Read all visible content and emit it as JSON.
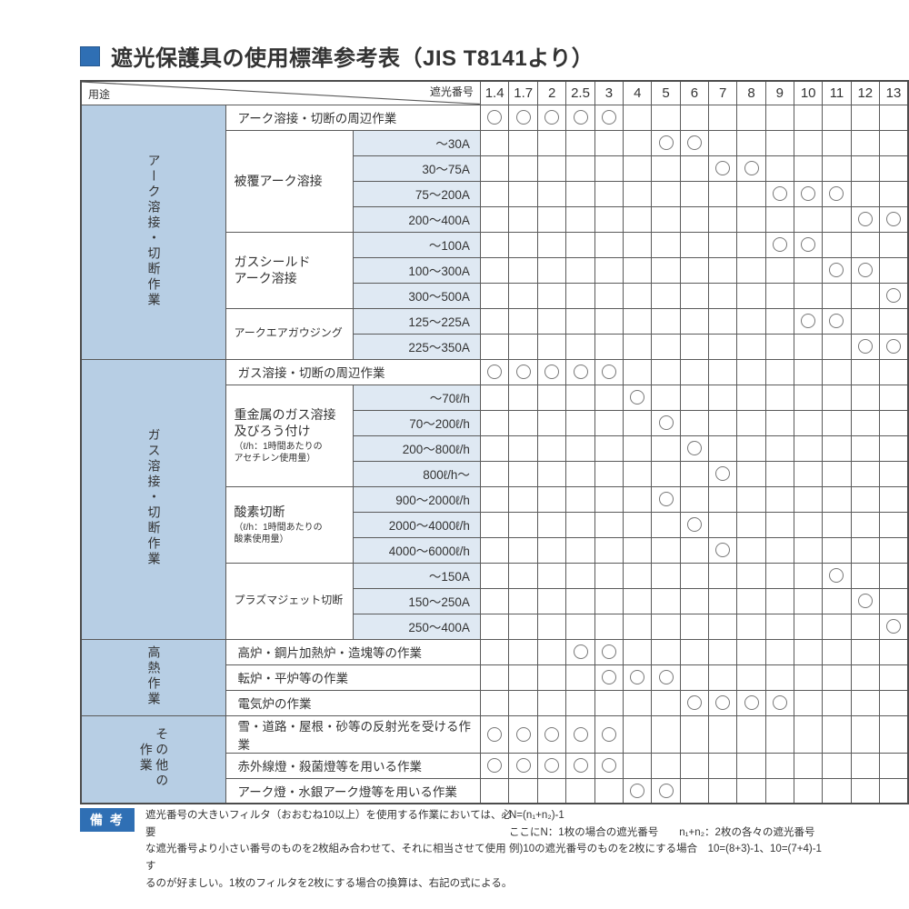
{
  "title": {
    "text": "遮光保護具の使用標準参考表（JIS T8141より）"
  },
  "table": {
    "corner_left": "用途",
    "corner_right": "遮光番号",
    "columns": [
      "1.4",
      "1.7",
      "2",
      "2.5",
      "3",
      "4",
      "5",
      "6",
      "7",
      "8",
      "9",
      "10",
      "11",
      "12",
      "13"
    ],
    "mark_symbol": "circle",
    "sections": [
      {
        "category": "アーク溶接・切断作業",
        "groups": [
          {
            "label": null,
            "rows": [
              {
                "text": "アーク溶接・切断の周辺作業",
                "marks": [
                  "1.4",
                  "1.7",
                  "2",
                  "2.5",
                  "3"
                ]
              }
            ]
          },
          {
            "label": "被覆アーク溶接",
            "note": null,
            "small": false,
            "rows": [
              {
                "text": "～30A",
                "marks": [
                  "5",
                  "6"
                ]
              },
              {
                "text": "30～75A",
                "marks": [
                  "7",
                  "8"
                ]
              },
              {
                "text": "75～200A",
                "marks": [
                  "9",
                  "10",
                  "11"
                ]
              },
              {
                "text": "200～400A",
                "marks": [
                  "12",
                  "13"
                ]
              }
            ]
          },
          {
            "label": "ガスシールド\nアーク溶接",
            "note": null,
            "small": false,
            "rows": [
              {
                "text": "～100A",
                "marks": [
                  "9",
                  "10"
                ]
              },
              {
                "text": "100～300A",
                "marks": [
                  "11",
                  "12"
                ]
              },
              {
                "text": "300～500A",
                "marks": [
                  "13"
                ]
              }
            ]
          },
          {
            "label": "アークエアガウジング",
            "note": null,
            "small": true,
            "rows": [
              {
                "text": "125～225A",
                "marks": [
                  "10",
                  "11"
                ]
              },
              {
                "text": "225～350A",
                "marks": [
                  "12",
                  "13"
                ]
              }
            ]
          }
        ]
      },
      {
        "category": "ガス溶接・切断作業",
        "groups": [
          {
            "label": null,
            "rows": [
              {
                "text": "ガス溶接・切断の周辺作業",
                "marks": [
                  "1.4",
                  "1.7",
                  "2",
                  "2.5",
                  "3"
                ]
              }
            ]
          },
          {
            "label": "重金属のガス溶接\n及びろう付け",
            "note": "（ℓ/h：1時間あたりの\nアセチレン使用量）",
            "small": false,
            "rows": [
              {
                "text": "～70ℓ/h",
                "marks": [
                  "4"
                ]
              },
              {
                "text": "70～200ℓ/h",
                "marks": [
                  "5"
                ]
              },
              {
                "text": "200～800ℓ/h",
                "marks": [
                  "6"
                ]
              },
              {
                "text": "800ℓ/h～",
                "marks": [
                  "7"
                ]
              }
            ]
          },
          {
            "label": "酸素切断",
            "note": "（ℓ/h：1時間あたりの\n酸素使用量）",
            "small": false,
            "rows": [
              {
                "text": "900～2000ℓ/h",
                "marks": [
                  "5"
                ]
              },
              {
                "text": "2000～4000ℓ/h",
                "marks": [
                  "6"
                ]
              },
              {
                "text": "4000～6000ℓ/h",
                "marks": [
                  "7"
                ]
              }
            ]
          },
          {
            "label": "プラズマジェット切断",
            "note": null,
            "small": true,
            "rows": [
              {
                "text": "～150A",
                "marks": [
                  "11"
                ]
              },
              {
                "text": "150～250A",
                "marks": [
                  "12"
                ]
              },
              {
                "text": "250～400A",
                "marks": [
                  "13"
                ]
              }
            ]
          }
        ]
      },
      {
        "category": "高熱作業",
        "groups": [
          {
            "label": null,
            "rows": [
              {
                "text": "高炉・鋼片加熱炉・造塊等の作業",
                "marks": [
                  "2.5",
                  "3"
                ]
              },
              {
                "text": "転炉・平炉等の作業",
                "marks": [
                  "3",
                  "4",
                  "5"
                ]
              },
              {
                "text": "電気炉の作業",
                "marks": [
                  "6",
                  "7",
                  "8",
                  "9"
                ]
              }
            ]
          }
        ]
      },
      {
        "category": "その他の\n作業",
        "groups": [
          {
            "label": null,
            "rows": [
              {
                "text": "雪・道路・屋根・砂等の反射光を受ける作業",
                "marks": [
                  "1.4",
                  "1.7",
                  "2",
                  "2.5",
                  "3"
                ]
              },
              {
                "text": "赤外線燈・殺菌燈等を用いる作業",
                "marks": [
                  "1.4",
                  "1.7",
                  "2",
                  "2.5",
                  "3"
                ]
              },
              {
                "text": "アーク燈・水銀アーク燈等を用いる作業",
                "marks": [
                  "4",
                  "5"
                ]
              }
            ]
          }
        ]
      }
    ]
  },
  "remarks": {
    "label": "備 考",
    "body": "遮光番号の大きいフィルタ（おおむね10以上）を使用する作業においては、必要\nな遮光番号より小さい番号のものを2枚組み合わせて、それに相当させて使用す\nるのが好ましい。1枚のフィルタを2枚にする場合の換算は、右記の式による。",
    "formulas": "N=(n₁+n₂)-1\nここにN：1枚の場合の遮光番号　　n₁+n₂：2枚の各々の遮光番号\n例)10の遮光番号のものを2枚にする場合　10=(8+3)-1、10=(7+4)-1"
  },
  "colors": {
    "accent_blue": "#2f6fb4",
    "category_cell_bg": "#b7cee4",
    "range_cell_bg": "#dfe9f3",
    "border": "#5a5a5a",
    "text": "#333333"
  }
}
